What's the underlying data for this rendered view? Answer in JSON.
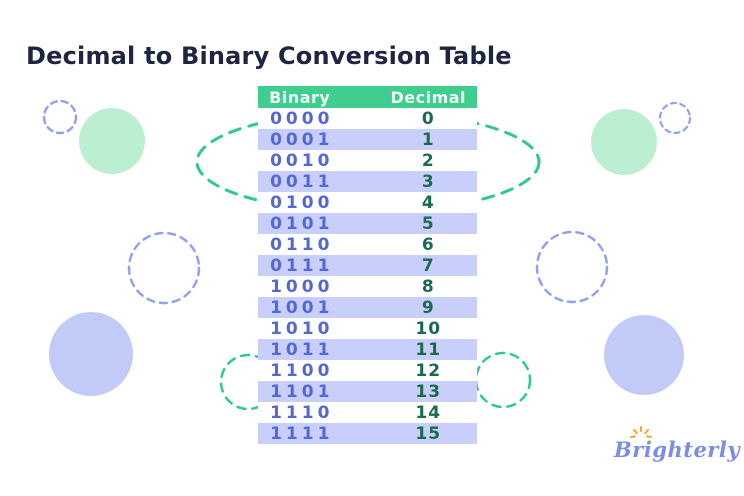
{
  "chart_data": {
    "type": "table",
    "title": "Decimal to Binary Conversion Table",
    "columns": [
      "Binary",
      "Decimal"
    ],
    "rows": [
      {
        "binary": "0000",
        "decimal": "0"
      },
      {
        "binary": "0001",
        "decimal": "1"
      },
      {
        "binary": "0010",
        "decimal": "2"
      },
      {
        "binary": "0011",
        "decimal": "3"
      },
      {
        "binary": "0100",
        "decimal": "4"
      },
      {
        "binary": "0101",
        "decimal": "5"
      },
      {
        "binary": "0110",
        "decimal": "6"
      },
      {
        "binary": "0111",
        "decimal": "7"
      },
      {
        "binary": "1000",
        "decimal": "8"
      },
      {
        "binary": "1001",
        "decimal": "9"
      },
      {
        "binary": "1010",
        "decimal": "10"
      },
      {
        "binary": "1011",
        "decimal": "11"
      },
      {
        "binary": "1100",
        "decimal": "12"
      },
      {
        "binary": "1101",
        "decimal": "13"
      },
      {
        "binary": "1110",
        "decimal": "14"
      },
      {
        "binary": "1111",
        "decimal": "15"
      }
    ],
    "layout_hints": {
      "header_position": "top",
      "alternating_rows": true,
      "first_row_background": "white"
    }
  },
  "logo": {
    "text": "Brighterly",
    "sun_icon": "sunburst-rays"
  },
  "colors": {
    "title_text": "#1c2541",
    "header_bg": "#3fcd90",
    "header_text": "#f2fdf8",
    "row_alt_bg": "#c9cffb",
    "binary_text": "#5566d9",
    "decimal_text": "#1a6b4d",
    "mint_circle_fill": "#bceed2",
    "lavender_circle_fill": "#c2cbf8",
    "dashed_lavender_stroke": "#92a0f1",
    "dashed_green_stroke": "#2bcb8a",
    "logo_text": "#7c8cea",
    "logo_sun": "#f6a827"
  }
}
